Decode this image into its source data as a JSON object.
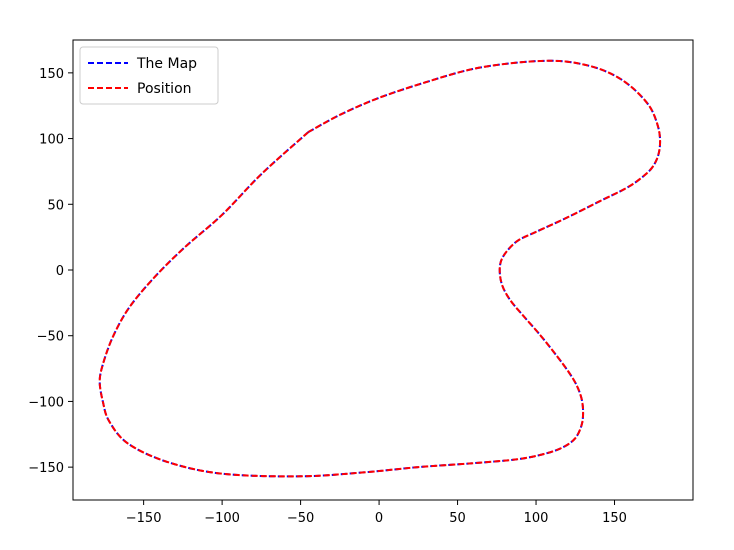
{
  "chart_data": {
    "type": "line",
    "title": "",
    "xlabel": "",
    "ylabel": "",
    "xlim": [
      -195,
      200
    ],
    "ylim": [
      -175,
      175
    ],
    "x_ticks": [
      -150,
      -100,
      -50,
      0,
      50,
      100,
      150
    ],
    "y_ticks": [
      -150,
      -100,
      -50,
      0,
      50,
      100,
      150
    ],
    "x_tick_labels": [
      "−150",
      "−100",
      "−50",
      "0",
      "50",
      "100",
      "150"
    ],
    "y_tick_labels": [
      "−150",
      "−100",
      "−50",
      "0",
      "50",
      "100",
      "150"
    ],
    "grid": false,
    "legend_position": "top-left",
    "series": [
      {
        "name": "The Map",
        "color": "#0000ff",
        "style": "dashed",
        "x": [
          -45,
          -25,
          0,
          30,
          60,
          90,
          115,
          135,
          150,
          162,
          172,
          177,
          179,
          178,
          174,
          167,
          157,
          140,
          120,
          100,
          88,
          80,
          77,
          78,
          83,
          92,
          103,
          113,
          121,
          126,
          129,
          130,
          129,
          125,
          117,
          105,
          88,
          60,
          25,
          -10,
          -50,
          -100,
          -135,
          -160,
          -172,
          -176,
          -178,
          -176,
          -170,
          -160,
          -145,
          -125,
          -100,
          -75,
          -45
        ],
        "y": [
          105,
          118,
          131,
          143,
          153,
          158,
          159,
          155,
          148,
          138,
          125,
          112,
          100,
          88,
          78,
          70,
          62,
          52,
          40,
          29,
          22,
          12,
          3,
          -10,
          -22,
          -35,
          -50,
          -65,
          -78,
          -88,
          -98,
          -108,
          -118,
          -128,
          -135,
          -140,
          -144,
          -147,
          -150,
          -154,
          -157,
          -155,
          -146,
          -132,
          -115,
          -100,
          -85,
          -72,
          -52,
          -30,
          -8,
          16,
          42,
          73,
          105
        ]
      },
      {
        "name": "Position",
        "color": "#ff0000",
        "style": "dashed",
        "x": [
          -45,
          -25,
          0,
          30,
          60,
          90,
          115,
          135,
          150,
          162,
          172,
          177,
          179,
          178,
          174,
          167,
          157,
          140,
          120,
          100,
          88,
          80,
          77,
          78,
          83,
          92,
          103,
          113,
          121,
          126,
          129,
          130,
          129,
          125,
          117,
          105,
          88,
          60,
          25,
          -10,
          -50,
          -100,
          -135,
          -160,
          -172,
          -176,
          -178,
          -176,
          -170,
          -160,
          -145,
          -125,
          -100,
          -75,
          -45
        ],
        "y": [
          105,
          118,
          131,
          143,
          153,
          158,
          159,
          155,
          148,
          138,
          125,
          112,
          100,
          88,
          78,
          70,
          62,
          52,
          40,
          29,
          22,
          12,
          3,
          -10,
          -22,
          -35,
          -50,
          -65,
          -78,
          -88,
          -98,
          -108,
          -118,
          -128,
          -135,
          -140,
          -144,
          -147,
          -150,
          -154,
          -157,
          -155,
          -146,
          -132,
          -115,
          -100,
          -85,
          -72,
          -52,
          -30,
          -8,
          16,
          42,
          73,
          105
        ]
      }
    ]
  }
}
